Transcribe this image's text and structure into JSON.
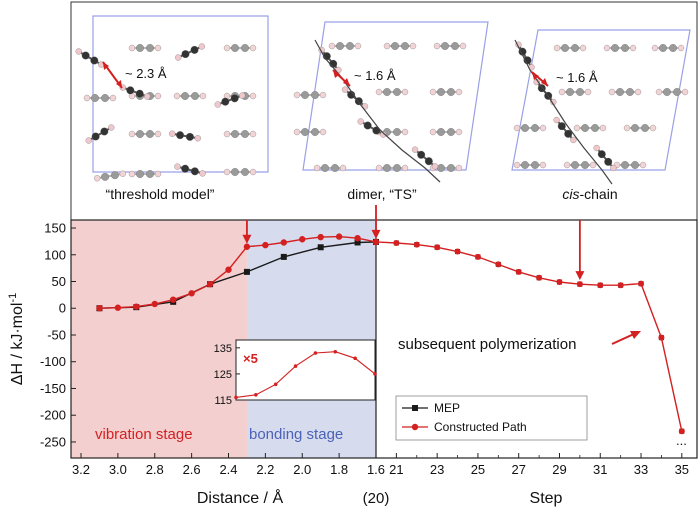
{
  "structures": {
    "panels": [
      {
        "caption": "“threshold model”",
        "distance": "~ 2.3 Å"
      },
      {
        "caption": "dimer,  “TS”",
        "distance": "~ 1.6 Å"
      },
      {
        "caption_italic": "cis",
        "caption_rest": "-chain",
        "distance": "~ 1.6 Å"
      }
    ]
  },
  "chart_data": {
    "type": "line",
    "ylabel_main": "ΔH / kJ·mol",
    "ylabel_sup": "-1",
    "ylim": [
      -280,
      165
    ],
    "yticks": [
      150,
      100,
      50,
      0,
      -50,
      -100,
      -150,
      -200,
      -250
    ],
    "distance_axis": {
      "xlabel": "Distance / Å",
      "xlim": [
        3.2,
        1.6
      ],
      "ticks": [
        "3.2",
        "3.0",
        "2.8",
        "2.6",
        "2.4",
        "2.2",
        "2.0",
        "1.8",
        "1.6"
      ],
      "tick_values": [
        3.2,
        3.0,
        2.8,
        2.6,
        2.4,
        2.2,
        2.0,
        1.8,
        1.6
      ]
    },
    "step_axis": {
      "xlabel": "Step",
      "xlim": [
        20,
        35.5
      ],
      "ticks": [
        "21",
        "23",
        "25",
        "27",
        "29",
        "31",
        "33",
        "35"
      ],
      "tick_values": [
        21,
        23,
        25,
        27,
        29,
        31,
        33,
        35
      ],
      "junction_label": "(20)"
    },
    "stages": {
      "vibration": "vibration stage",
      "bonding": "bonding stage",
      "boundary": 2.3
    },
    "series": [
      {
        "name": "MEP",
        "color": "#1a1a1a",
        "x": [
          3.1,
          2.9,
          2.7,
          2.5,
          2.3,
          2.1,
          1.9,
          1.7,
          1.6
        ],
        "y": [
          0,
          2,
          12,
          45,
          68,
          96,
          114,
          123,
          124
        ]
      },
      {
        "name": "Constructed Path",
        "color": "#d42020",
        "x": [
          3.1,
          3.0,
          2.9,
          2.8,
          2.7,
          2.6,
          2.5,
          2.4,
          2.3,
          2.2,
          2.1,
          2.0,
          1.9,
          1.8,
          1.7,
          1.6
        ],
        "y": [
          0,
          1,
          3,
          8,
          16,
          28,
          45,
          72,
          115,
          118,
          123,
          129,
          133,
          134,
          131,
          124
        ],
        "steps": [
          20,
          21,
          22,
          23,
          24,
          25,
          26,
          27,
          28,
          29,
          30,
          31,
          32,
          33,
          34,
          35
        ],
        "step_y": [
          124,
          122,
          119,
          114,
          106,
          96,
          82,
          68,
          57,
          49,
          45,
          43,
          43,
          46,
          -55,
          -230
        ]
      }
    ],
    "inset": {
      "multiplier": "×5",
      "ylim": [
        115,
        138
      ],
      "yticks": [
        135,
        125,
        115
      ],
      "x": [
        2.3,
        2.2,
        2.1,
        2.0,
        1.9,
        1.8,
        1.7,
        1.6
      ],
      "y": [
        116,
        117,
        121,
        128,
        133,
        133.5,
        131,
        125
      ]
    },
    "annotations": {
      "polymerization": "subsequent polymerization",
      "ellipsis": "..."
    },
    "legend_position": "bottom-right"
  },
  "colors": {
    "vibration_bg": "#f4cfcf",
    "bonding_bg": "#d6dcee",
    "red": "#d42020",
    "black": "#1a1a1a",
    "cell": "#9aa0e6"
  }
}
